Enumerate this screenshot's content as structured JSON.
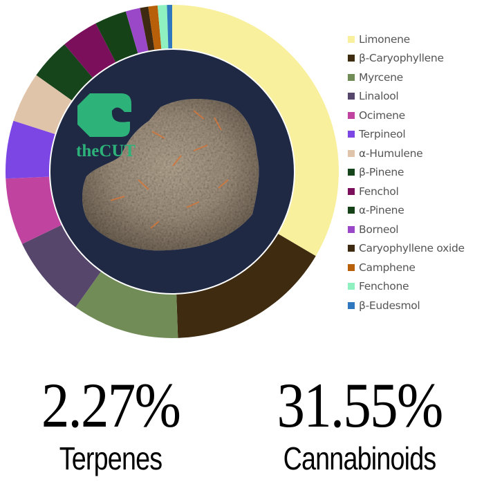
{
  "chart_data": {
    "type": "pie",
    "variant": "donut",
    "legend_position": "right",
    "series": [
      {
        "name": "Limonene",
        "value": 33.5,
        "color": "#f8f09c"
      },
      {
        "name": "β-Caryophyllene",
        "value": 16.0,
        "color": "#3f2b10"
      },
      {
        "name": "Myrcene",
        "value": 10.4,
        "color": "#718c56"
      },
      {
        "name": "Linalool",
        "value": 8.0,
        "color": "#56466b"
      },
      {
        "name": "Ocimene",
        "value": 6.5,
        "color": "#c0449f"
      },
      {
        "name": "Terpineol",
        "value": 5.6,
        "color": "#7b46e4"
      },
      {
        "name": "α-Humulene",
        "value": 4.9,
        "color": "#e0c4aa"
      },
      {
        "name": "β-Pinene",
        "value": 4.0,
        "color": "#17451b"
      },
      {
        "name": "Fenchol",
        "value": 3.6,
        "color": "#7c0f5c"
      },
      {
        "name": "α-Pinene",
        "value": 3.1,
        "color": "#154217"
      },
      {
        "name": "Borneol",
        "value": 1.4,
        "color": "#9a48c7"
      },
      {
        "name": "Caryophyllene oxide",
        "value": 0.8,
        "color": "#3d2a10"
      },
      {
        "name": "Camphene",
        "value": 0.9,
        "color": "#b85f0a"
      },
      {
        "name": "Fenchone",
        "value": 0.9,
        "color": "#8ff0c0"
      },
      {
        "name": "β-Eudesmol",
        "value": 0.5,
        "color": "#2f78bf"
      }
    ]
  },
  "center": {
    "logo_text": "theCUT",
    "logo_color": "#2db37a",
    "background": "#1f2944"
  },
  "stats": {
    "terpenes": {
      "value": "2.27%",
      "label": "Terpenes"
    },
    "cannabinoids": {
      "value": "31.55%",
      "label": "Cannabinoids"
    }
  }
}
